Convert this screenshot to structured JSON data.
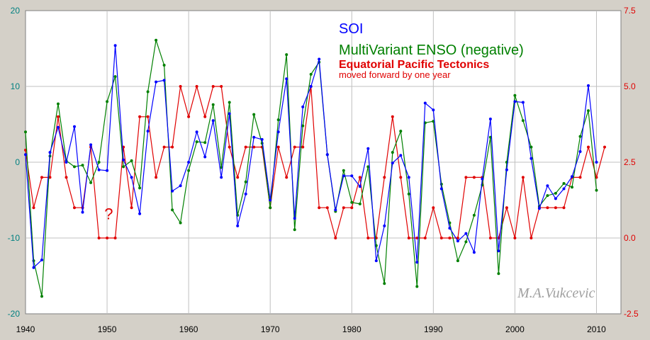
{
  "chart_data": {
    "type": "line",
    "x_range": [
      1940,
      2013
    ],
    "x_ticks": [
      1940,
      1950,
      1960,
      1970,
      1980,
      1990,
      2000,
      2010
    ],
    "left_axis": {
      "range": [
        -20,
        20
      ],
      "ticks": [
        20,
        10,
        0,
        -10,
        -20
      ],
      "color": "#008080"
    },
    "right_axis": {
      "range": [
        -2.5,
        7.5
      ],
      "ticks": [
        7.5,
        5.0,
        2.5,
        0.0,
        -2.5
      ],
      "color": "#e00000"
    },
    "grid": true,
    "legend": [
      {
        "text": "SOI",
        "color": "#0000ff"
      },
      {
        "text": "MultiVariant ENSO (negative)",
        "color": "#008000"
      },
      {
        "text": "Equatorial Pacific Tectonics",
        "color": "#e00000"
      },
      {
        "text": "moved forward by one year",
        "color": "#e00000"
      }
    ],
    "annotations": [
      {
        "text": "?",
        "x": 1950.2,
        "y": -7.5,
        "color": "#e00000"
      }
    ],
    "signature": "M.A.Vukcevic",
    "series": [
      {
        "name": "SOI",
        "color": "#0000ff",
        "axis": "left",
        "points": [
          [
            1940,
            1
          ],
          [
            1941,
            -13.9
          ],
          [
            1942,
            -12.9
          ],
          [
            1943,
            1.3
          ],
          [
            1944,
            4.6
          ],
          [
            1945,
            0
          ],
          [
            1946,
            4.7
          ],
          [
            1947,
            -6.6
          ],
          [
            1948,
            2.3
          ],
          [
            1949,
            -1
          ],
          [
            1950,
            -1.1
          ],
          [
            1951,
            15.4
          ],
          [
            1952,
            0.3
          ],
          [
            1953,
            -2
          ],
          [
            1954,
            -6.8
          ],
          [
            1955,
            4.1
          ],
          [
            1956,
            10.6
          ],
          [
            1957,
            10.8
          ],
          [
            1958,
            -3.8
          ],
          [
            1959,
            -3.1
          ],
          [
            1960,
            0
          ],
          [
            1961,
            4
          ],
          [
            1962,
            0.7
          ],
          [
            1963,
            5.5
          ],
          [
            1964,
            -2
          ],
          [
            1965,
            6.4
          ],
          [
            1966,
            -8.4
          ],
          [
            1967,
            -4.2
          ],
          [
            1968,
            3.3
          ],
          [
            1969,
            3
          ],
          [
            1970,
            -5
          ],
          [
            1971,
            4
          ],
          [
            1972,
            11
          ],
          [
            1973,
            -7.4
          ],
          [
            1974,
            7.3
          ],
          [
            1975,
            10
          ],
          [
            1976,
            13.6
          ],
          [
            1977,
            1
          ],
          [
            1978,
            -6.3
          ],
          [
            1979,
            -1.8
          ],
          [
            1980,
            -1.8
          ],
          [
            1981,
            -3.2
          ],
          [
            1982,
            1.8
          ],
          [
            1983,
            -13
          ],
          [
            1984,
            -8.4
          ],
          [
            1985,
            -0.1
          ],
          [
            1986,
            0.9
          ],
          [
            1987,
            -2
          ],
          [
            1988,
            -13.2
          ],
          [
            1989,
            7.8
          ],
          [
            1990,
            6.9
          ],
          [
            1991,
            -3.5
          ],
          [
            1992,
            -8.7
          ],
          [
            1993,
            -10.4
          ],
          [
            1994,
            -9.4
          ],
          [
            1995,
            -11.9
          ],
          [
            1996,
            -2.2
          ],
          [
            1997,
            5.7
          ],
          [
            1998,
            -11.7
          ],
          [
            1999,
            -1
          ],
          [
            2000,
            8
          ],
          [
            2001,
            7.9
          ],
          [
            2002,
            0.5
          ],
          [
            2003,
            -6.1
          ],
          [
            2004,
            -3.1
          ],
          [
            2005,
            -4.8
          ],
          [
            2006,
            -3.5
          ],
          [
            2007,
            -1.9
          ],
          [
            2008,
            1.4
          ],
          [
            2009,
            10.1
          ],
          [
            2010,
            0
          ]
        ]
      },
      {
        "name": "MultiVariant ENSO (negative)",
        "color": "#008000",
        "axis": "left",
        "points": [
          [
            1940,
            4
          ],
          [
            1941,
            -13
          ],
          [
            1942,
            -17.7
          ],
          [
            1943,
            0.8
          ],
          [
            1944,
            7.7
          ],
          [
            1945,
            0.2
          ],
          [
            1946,
            -0.6
          ],
          [
            1947,
            -0.4
          ],
          [
            1948,
            -2.7
          ],
          [
            1949,
            0
          ],
          [
            1950,
            8
          ],
          [
            1951,
            11.3
          ],
          [
            1952,
            -0.6
          ],
          [
            1953,
            0.2
          ],
          [
            1954,
            -3.4
          ],
          [
            1955,
            9.3
          ],
          [
            1956,
            16.1
          ],
          [
            1957,
            12.8
          ],
          [
            1958,
            -6.3
          ],
          [
            1959,
            -8
          ],
          [
            1960,
            -1.1
          ],
          [
            1961,
            2.7
          ],
          [
            1962,
            2.6
          ],
          [
            1963,
            7.6
          ],
          [
            1964,
            -0.7
          ],
          [
            1965,
            7.9
          ],
          [
            1966,
            -7
          ],
          [
            1967,
            -2.6
          ],
          [
            1968,
            6.3
          ],
          [
            1969,
            2.5
          ],
          [
            1970,
            -6
          ],
          [
            1971,
            5.6
          ],
          [
            1972,
            14.2
          ],
          [
            1973,
            -8.9
          ],
          [
            1974,
            4.8
          ],
          [
            1975,
            11.6
          ],
          [
            1976,
            13.2
          ],
          [
            1977,
            1
          ],
          [
            1978,
            -6.5
          ],
          [
            1979,
            -1.1
          ],
          [
            1980,
            -5.3
          ],
          [
            1981,
            -5.5
          ],
          [
            1982,
            -0.6
          ],
          [
            1983,
            -11
          ],
          [
            1984,
            -16
          ],
          [
            1985,
            1.3
          ],
          [
            1986,
            4.1
          ],
          [
            1987,
            -4.2
          ],
          [
            1988,
            -16.4
          ],
          [
            1989,
            5.2
          ],
          [
            1990,
            5.4
          ],
          [
            1991,
            -2.9
          ],
          [
            1992,
            -8
          ],
          [
            1993,
            -13
          ],
          [
            1994,
            -10.5
          ],
          [
            1995,
            -7
          ],
          [
            1996,
            -3
          ],
          [
            1997,
            3.3
          ],
          [
            1998,
            -14.7
          ],
          [
            1999,
            0
          ],
          [
            2000,
            8.8
          ],
          [
            2001,
            5.5
          ],
          [
            2002,
            2
          ],
          [
            2003,
            -5.8
          ],
          [
            2004,
            -4.4
          ],
          [
            2005,
            -4.1
          ],
          [
            2006,
            -2.8
          ],
          [
            2007,
            -3.3
          ],
          [
            2008,
            3.4
          ],
          [
            2009,
            6.8
          ],
          [
            2010,
            -3.7
          ]
        ]
      },
      {
        "name": "Equatorial Pacific Tectonics",
        "color": "#e00000",
        "axis": "right",
        "points": [
          [
            1940,
            2.9
          ],
          [
            1941,
            1
          ],
          [
            1942,
            2
          ],
          [
            1943,
            2
          ],
          [
            1944,
            4
          ],
          [
            1945,
            2
          ],
          [
            1946,
            1
          ],
          [
            1947,
            1
          ],
          [
            1948,
            3
          ],
          [
            1949,
            0
          ],
          [
            1950,
            0
          ],
          [
            1951,
            0
          ],
          [
            1952,
            3
          ],
          [
            1953,
            1
          ],
          [
            1954,
            4
          ],
          [
            1955,
            4
          ],
          [
            1956,
            2
          ],
          [
            1957,
            3
          ],
          [
            1958,
            3
          ],
          [
            1959,
            5
          ],
          [
            1960,
            4
          ],
          [
            1961,
            5
          ],
          [
            1962,
            4
          ],
          [
            1963,
            5
          ],
          [
            1964,
            5
          ],
          [
            1965,
            3
          ],
          [
            1966,
            2
          ],
          [
            1967,
            3
          ],
          [
            1968,
            3
          ],
          [
            1969,
            3
          ],
          [
            1970,
            1
          ],
          [
            1971,
            3
          ],
          [
            1972,
            2
          ],
          [
            1973,
            3
          ],
          [
            1974,
            3
          ],
          [
            1975,
            5
          ],
          [
            1976,
            1
          ],
          [
            1977,
            1
          ],
          [
            1978,
            0
          ],
          [
            1979,
            1
          ],
          [
            1980,
            1
          ],
          [
            1981,
            2
          ],
          [
            1982,
            0
          ],
          [
            1983,
            0
          ],
          [
            1984,
            2
          ],
          [
            1985,
            4
          ],
          [
            1986,
            2
          ],
          [
            1987,
            0
          ],
          [
            1988,
            0
          ],
          [
            1989,
            0
          ],
          [
            1990,
            1
          ],
          [
            1991,
            0
          ],
          [
            1992,
            0
          ],
          [
            1993,
            0
          ],
          [
            1994,
            2
          ],
          [
            1995,
            2
          ],
          [
            1996,
            2
          ],
          [
            1997,
            0
          ],
          [
            1998,
            0
          ],
          [
            1999,
            1
          ],
          [
            2000,
            0
          ],
          [
            2001,
            2
          ],
          [
            2002,
            0
          ],
          [
            2003,
            1
          ],
          [
            2004,
            1
          ],
          [
            2005,
            1
          ],
          [
            2006,
            1
          ],
          [
            2007,
            2
          ],
          [
            2008,
            2
          ],
          [
            2009,
            3
          ],
          [
            2010,
            2
          ],
          [
            2011,
            3
          ]
        ]
      }
    ]
  }
}
